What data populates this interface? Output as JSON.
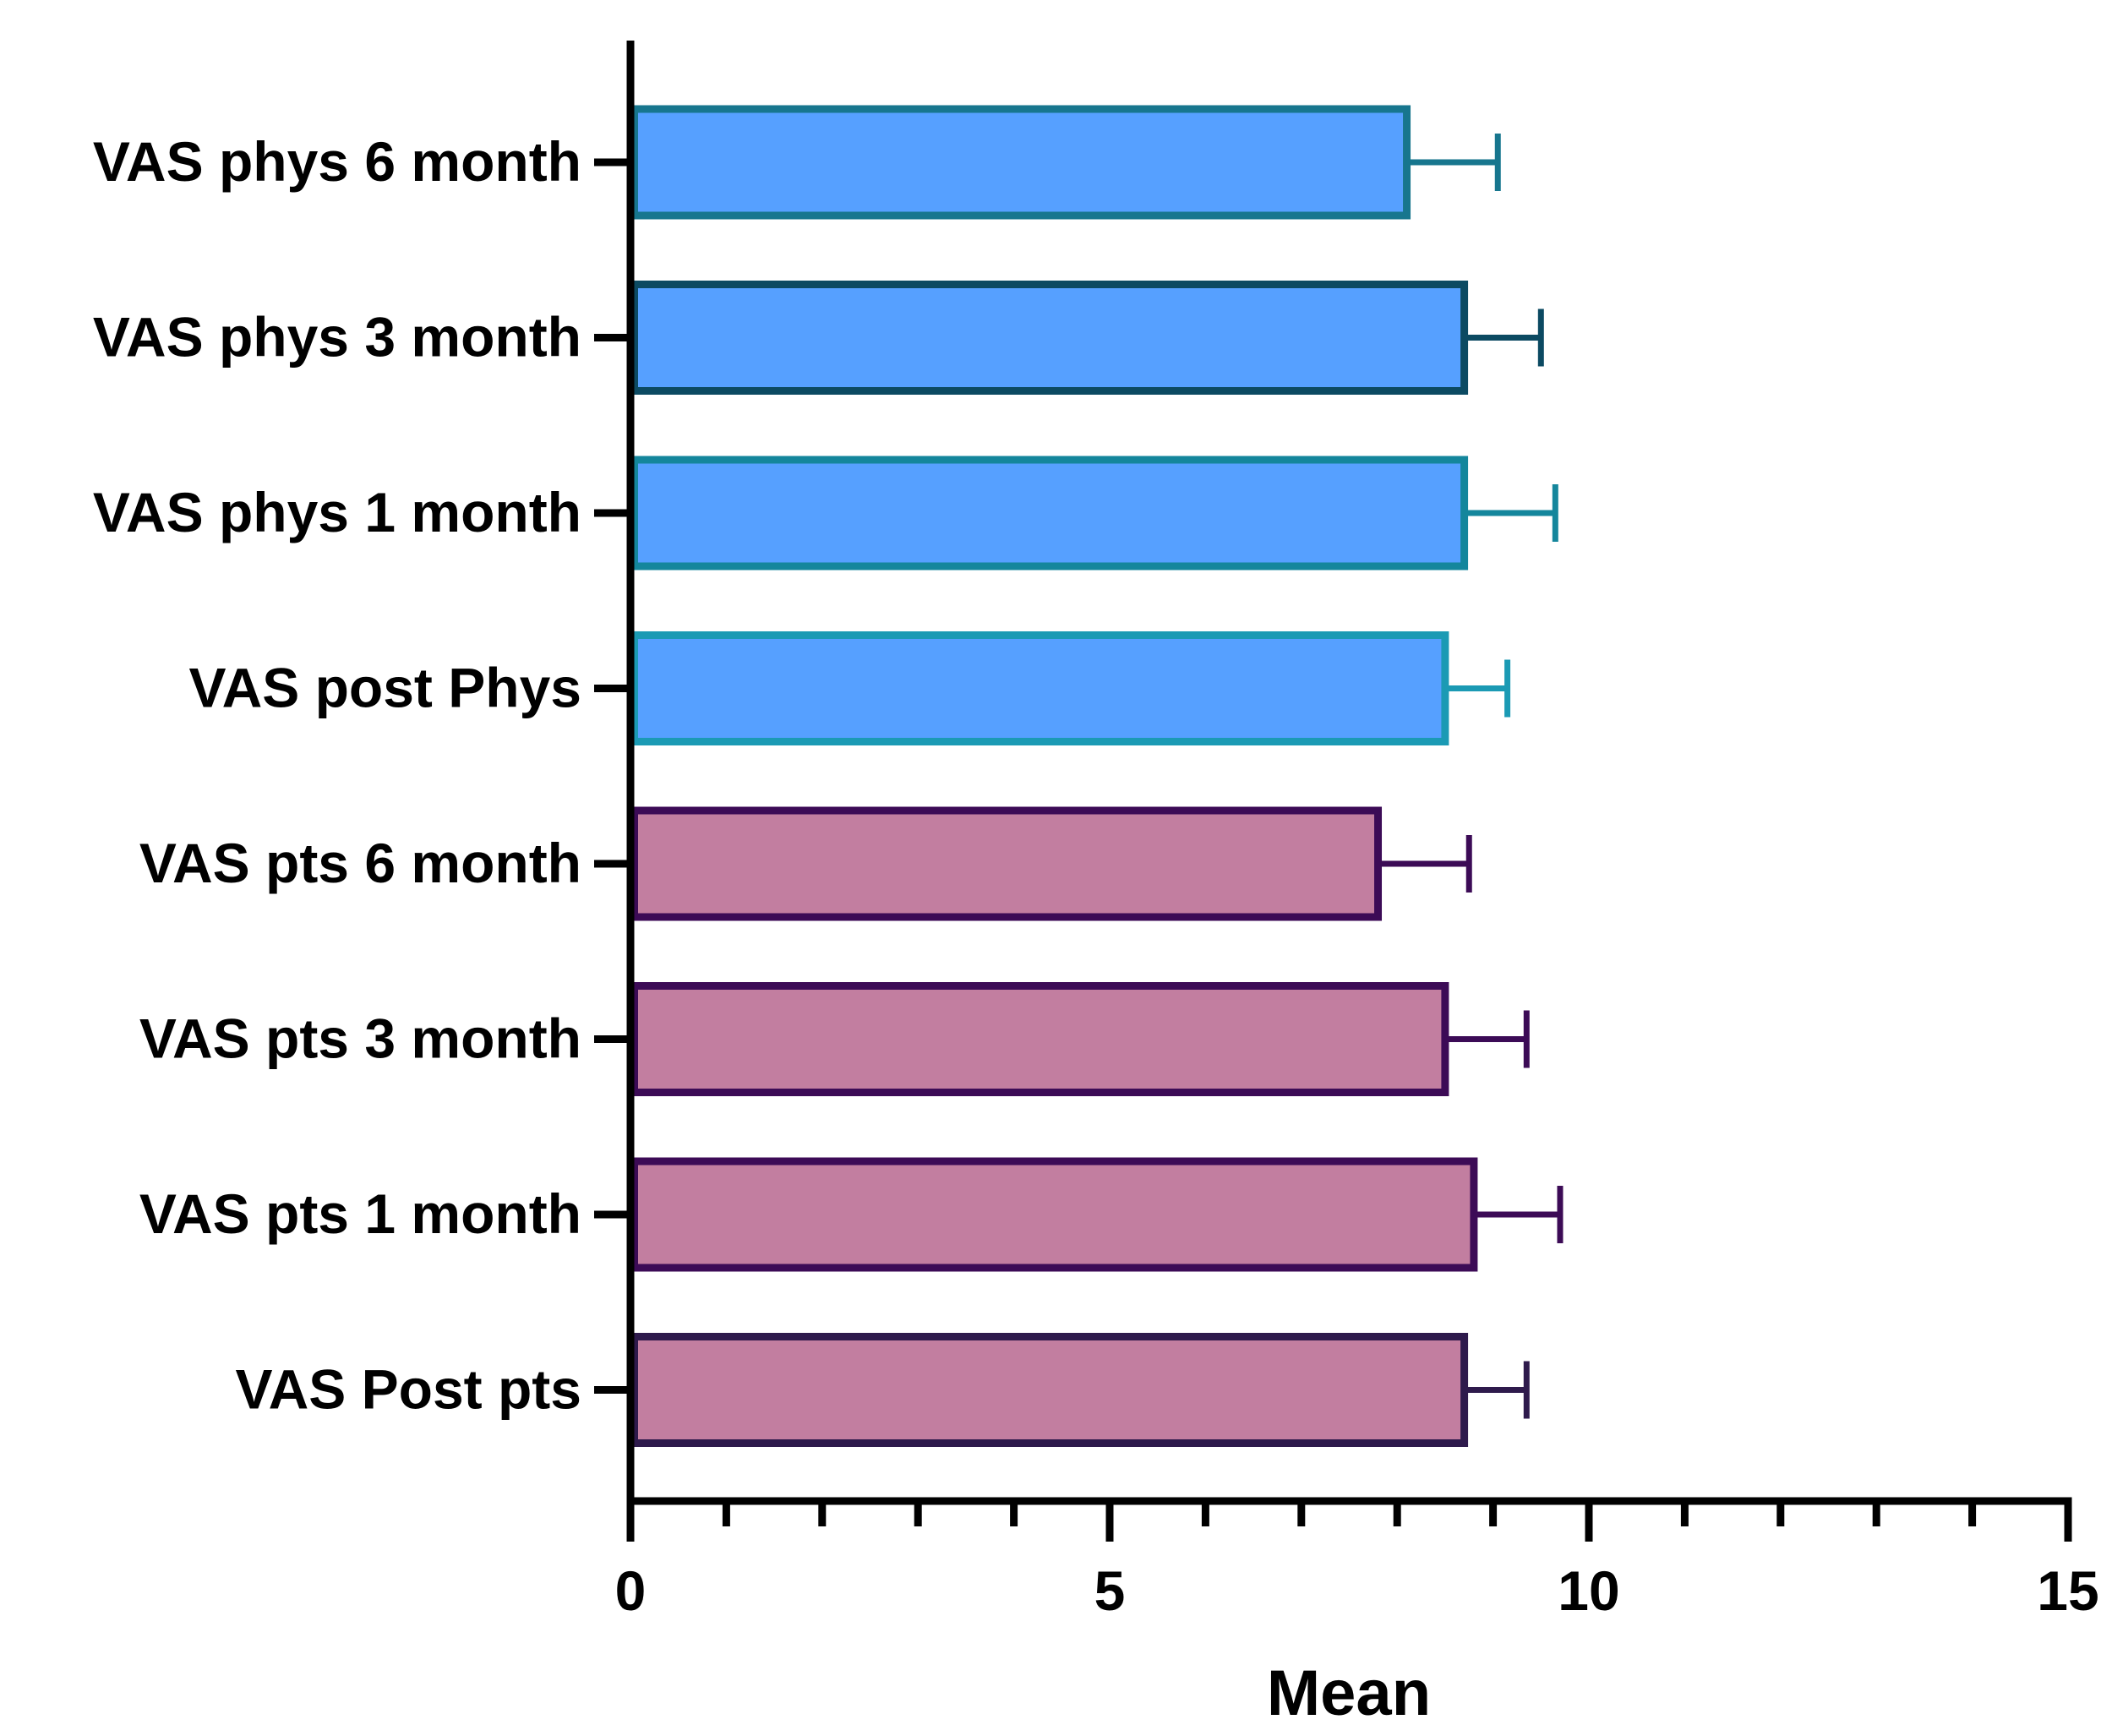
{
  "chart_data": {
    "type": "bar",
    "orientation": "horizontal",
    "title": "",
    "xlabel": "Mean",
    "ylabel": "",
    "xlim": [
      0,
      15
    ],
    "x_major_ticks": [
      0,
      5,
      10,
      15
    ],
    "x_minor_tick_step": 1,
    "grid": false,
    "legend": "none",
    "categories": [
      "VAS phys 6 month",
      "VAS phys 3 month",
      "VAS phys 1 month",
      "VAS post Phys",
      "VAS pts 6 month",
      "VAS pts 3 month",
      "VAS pts 1 month",
      "VAS Post pts"
    ],
    "values": [
      8.1,
      8.7,
      8.7,
      8.5,
      7.8,
      8.5,
      8.8,
      8.7
    ],
    "error": [
      0.95,
      0.8,
      0.95,
      0.65,
      0.95,
      0.85,
      0.9,
      0.65
    ],
    "fill_colors": [
      "#56A0FF",
      "#56A0FF",
      "#56A0FF",
      "#56A0FF",
      "#C27EA0",
      "#C27EA0",
      "#C27EA0",
      "#C27EA0"
    ],
    "edge_colors": [
      "#17768E",
      "#0C4A62",
      "#14869C",
      "#1B9AB4",
      "#3C0B56",
      "#3C0B56",
      "#3C0B56",
      "#2E1A4C"
    ]
  }
}
